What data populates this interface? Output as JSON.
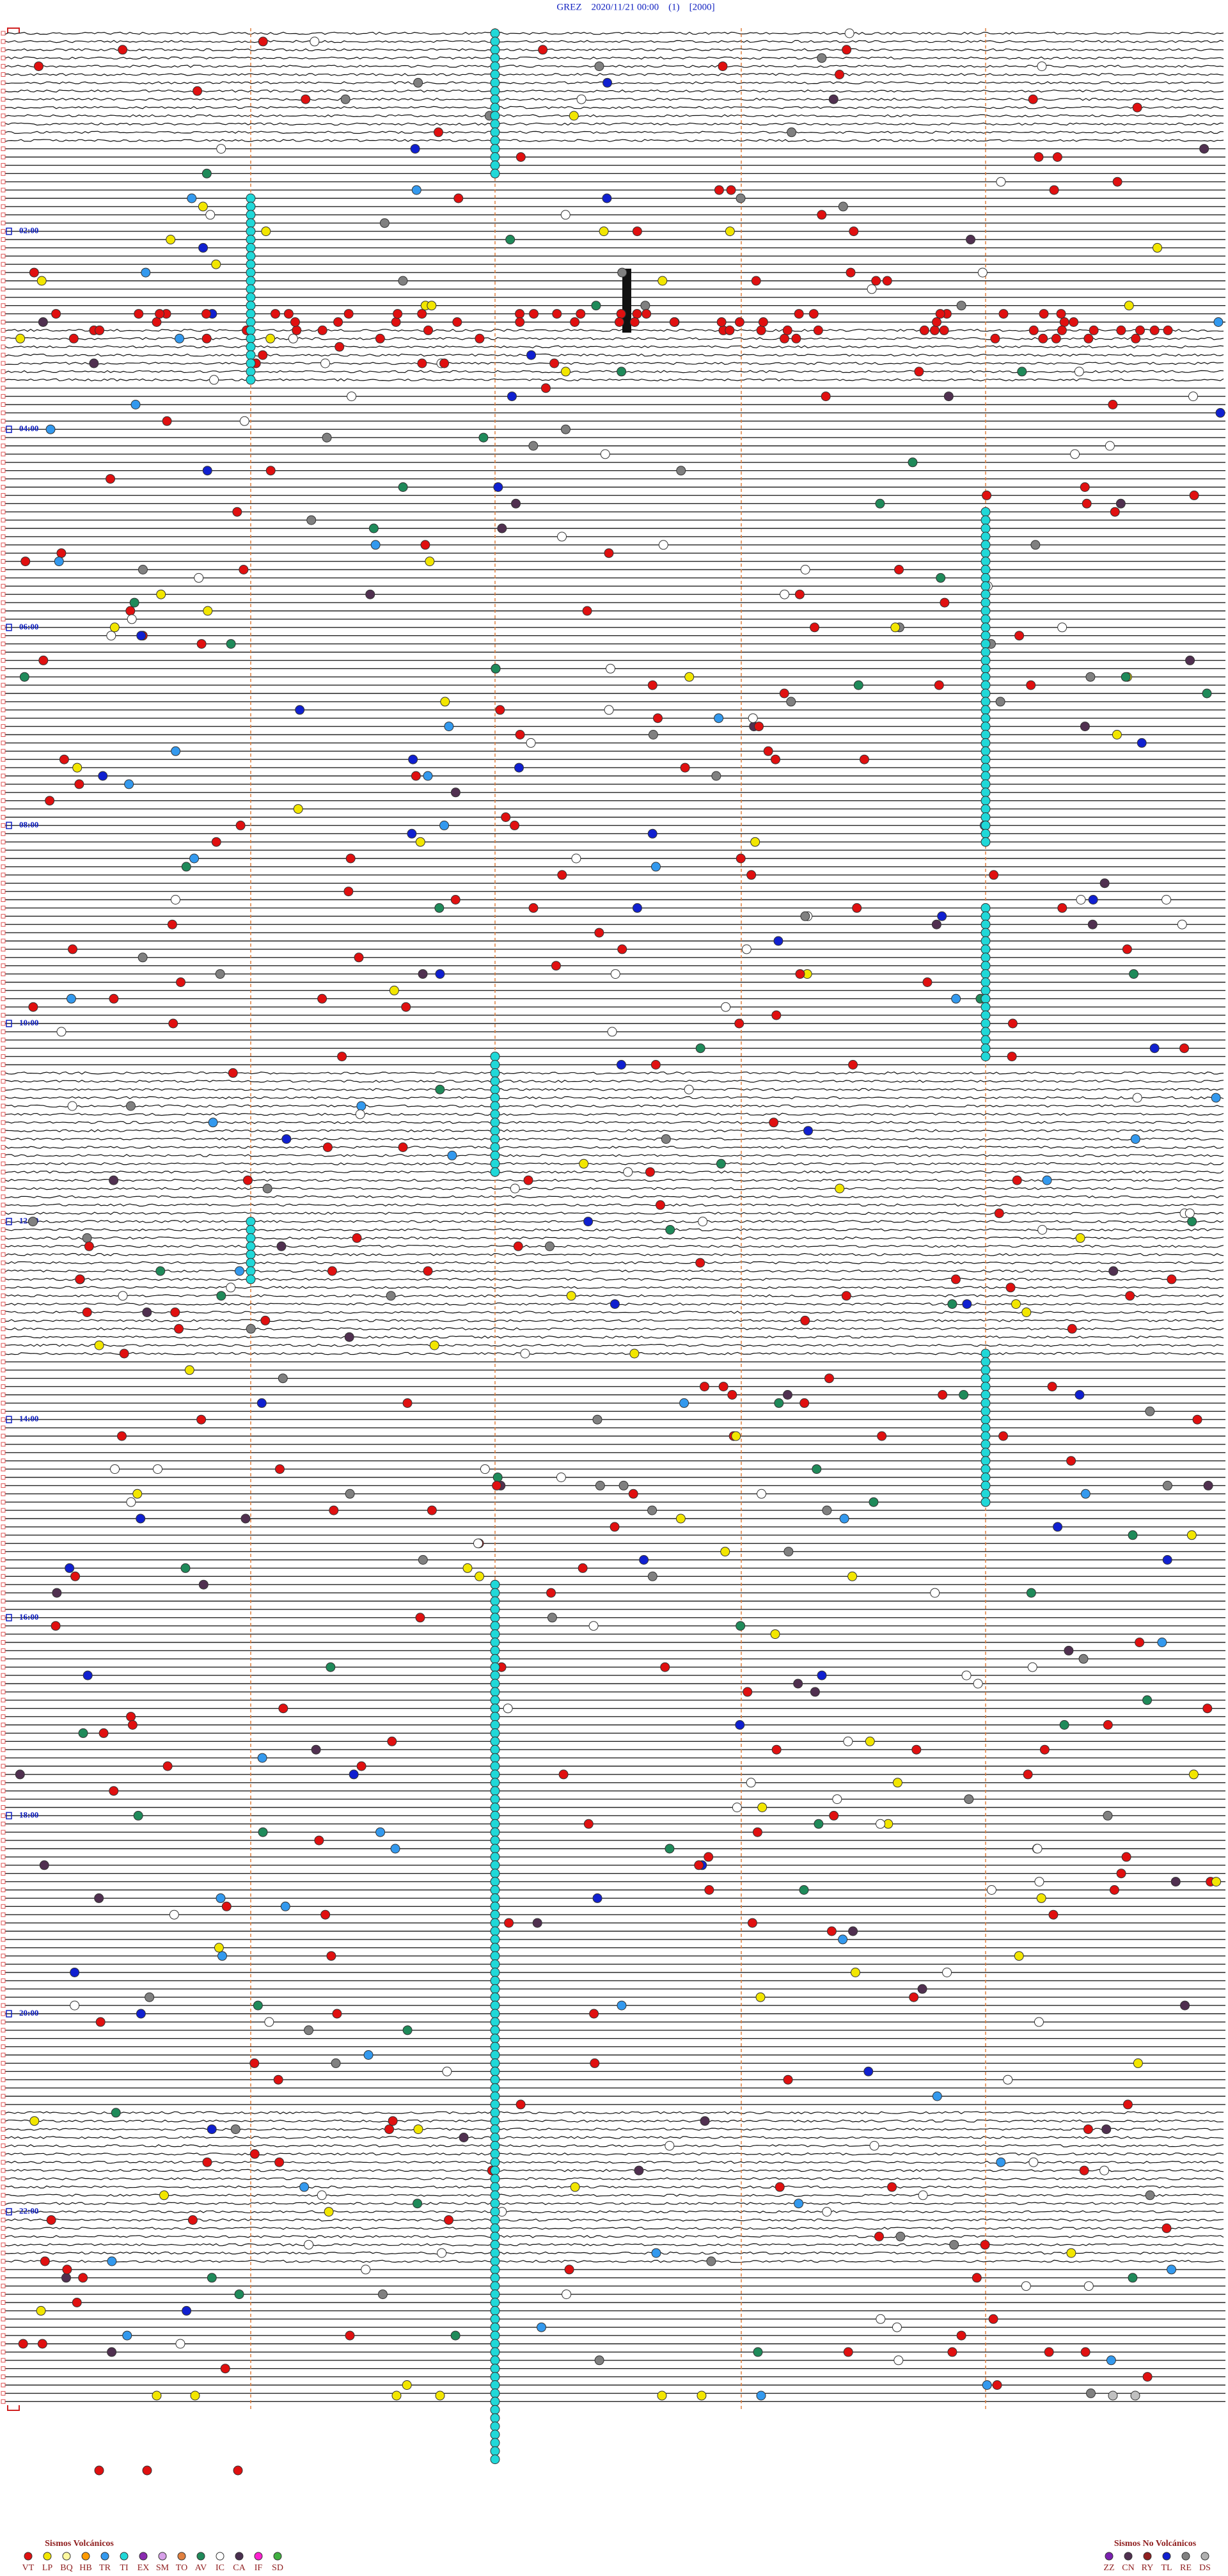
{
  "header": {
    "title": "GREZ    2020/11/21 00:00    (1)    [2000]"
  },
  "time_labels": [
    "02:00",
    "04:00",
    "06:00",
    "08:00",
    "10:00",
    "12:00",
    "14:00",
    "16:00",
    "18:00",
    "20:00",
    "22:00"
  ],
  "legend": {
    "volcanic": {
      "title": "Sismos Volcánicos",
      "items": [
        {
          "code": "VT",
          "color": "#e01010"
        },
        {
          "code": "LP",
          "color": "#f2e600"
        },
        {
          "code": "BQ",
          "color": "#fff9a0"
        },
        {
          "code": "HB",
          "color": "#ff9a00"
        },
        {
          "code": "TR",
          "color": "#3399ee"
        },
        {
          "code": "TI",
          "color": "#20d8d8"
        },
        {
          "code": "EX",
          "color": "#8a2bb0"
        },
        {
          "code": "SM",
          "color": "#d7a0e8"
        },
        {
          "code": "TO",
          "color": "#e08040"
        },
        {
          "code": "AV",
          "color": "#1f8a5a"
        },
        {
          "code": "IC",
          "color": "#ffffff"
        },
        {
          "code": "CA",
          "color": "#4a3050"
        },
        {
          "code": "IF",
          "color": "#ff20d0"
        },
        {
          "code": "SD",
          "color": "#40b040"
        }
      ]
    },
    "non_volcanic": {
      "title": "Sismos No Volcánicos",
      "items": [
        {
          "code": "ZZ",
          "color": "#7a20b0"
        },
        {
          "code": "CN",
          "color": "#503050"
        },
        {
          "code": "RY",
          "color": "#902020"
        },
        {
          "code": "TL",
          "color": "#1020d0"
        },
        {
          "code": "RE",
          "color": "#808080"
        },
        {
          "code": "DS",
          "color": "#b0b0b0"
        }
      ]
    }
  }
}
